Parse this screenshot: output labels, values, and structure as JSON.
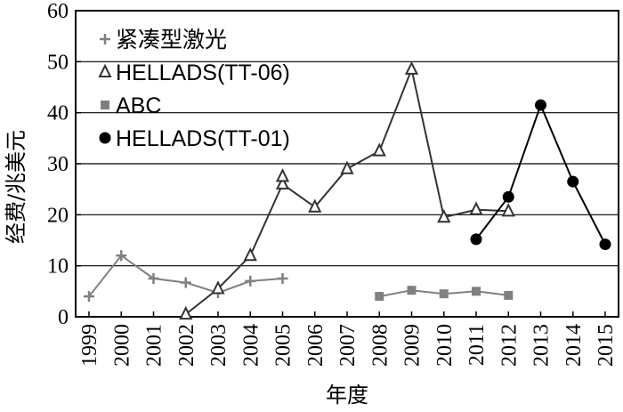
{
  "chart_data": {
    "type": "line",
    "xlabel": "年度",
    "ylabel": "经费/兆美元",
    "xlim": [
      1999,
      2015
    ],
    "ylim": [
      0,
      60
    ],
    "x_ticks": [
      "1999",
      "2000",
      "2001",
      "2002",
      "2003",
      "2004",
      "2005",
      "2006",
      "2007",
      "2008",
      "2009",
      "2010",
      "2011",
      "2012",
      "2013",
      "2014",
      "2015"
    ],
    "y_ticks": [
      "0",
      "10",
      "20",
      "30",
      "40",
      "50",
      "60"
    ],
    "grid": "horizontal",
    "legend_position": "top-left",
    "series": [
      {
        "name": "紧凑型激光",
        "marker": "plus",
        "color": "#808080",
        "x": [
          1999,
          2000,
          2001,
          2002,
          2003,
          2004,
          2005
        ],
        "y": [
          4,
          12,
          7.5,
          6.7,
          4.7,
          7,
          7.5
        ]
      },
      {
        "name": "HELLADS(TT-06)",
        "marker": "triangle-open",
        "color": "#333333",
        "x": [
          2002,
          2003,
          2004,
          2005,
          2006,
          2007,
          2008,
          2009,
          2010,
          2011,
          2012
        ],
        "y": [
          0.5,
          5.5,
          12,
          26,
          21.5,
          29,
          32.5,
          48.5,
          19.5,
          21,
          20.7
        ],
        "extra_points": [
          {
            "x": 2005,
            "y": 27.5
          }
        ]
      },
      {
        "name": "ABC",
        "marker": "square",
        "color": "#808080",
        "x": [
          2008,
          2009,
          2010,
          2011,
          2012
        ],
        "y": [
          4,
          5.2,
          4.5,
          5,
          4.2
        ]
      },
      {
        "name": "HELLADS(TT-01)",
        "marker": "circle-filled",
        "color": "#000000",
        "x": [
          2011,
          2012,
          2013,
          2014,
          2015
        ],
        "y": [
          15.2,
          23.5,
          41.5,
          26.5,
          14.2
        ]
      }
    ]
  }
}
